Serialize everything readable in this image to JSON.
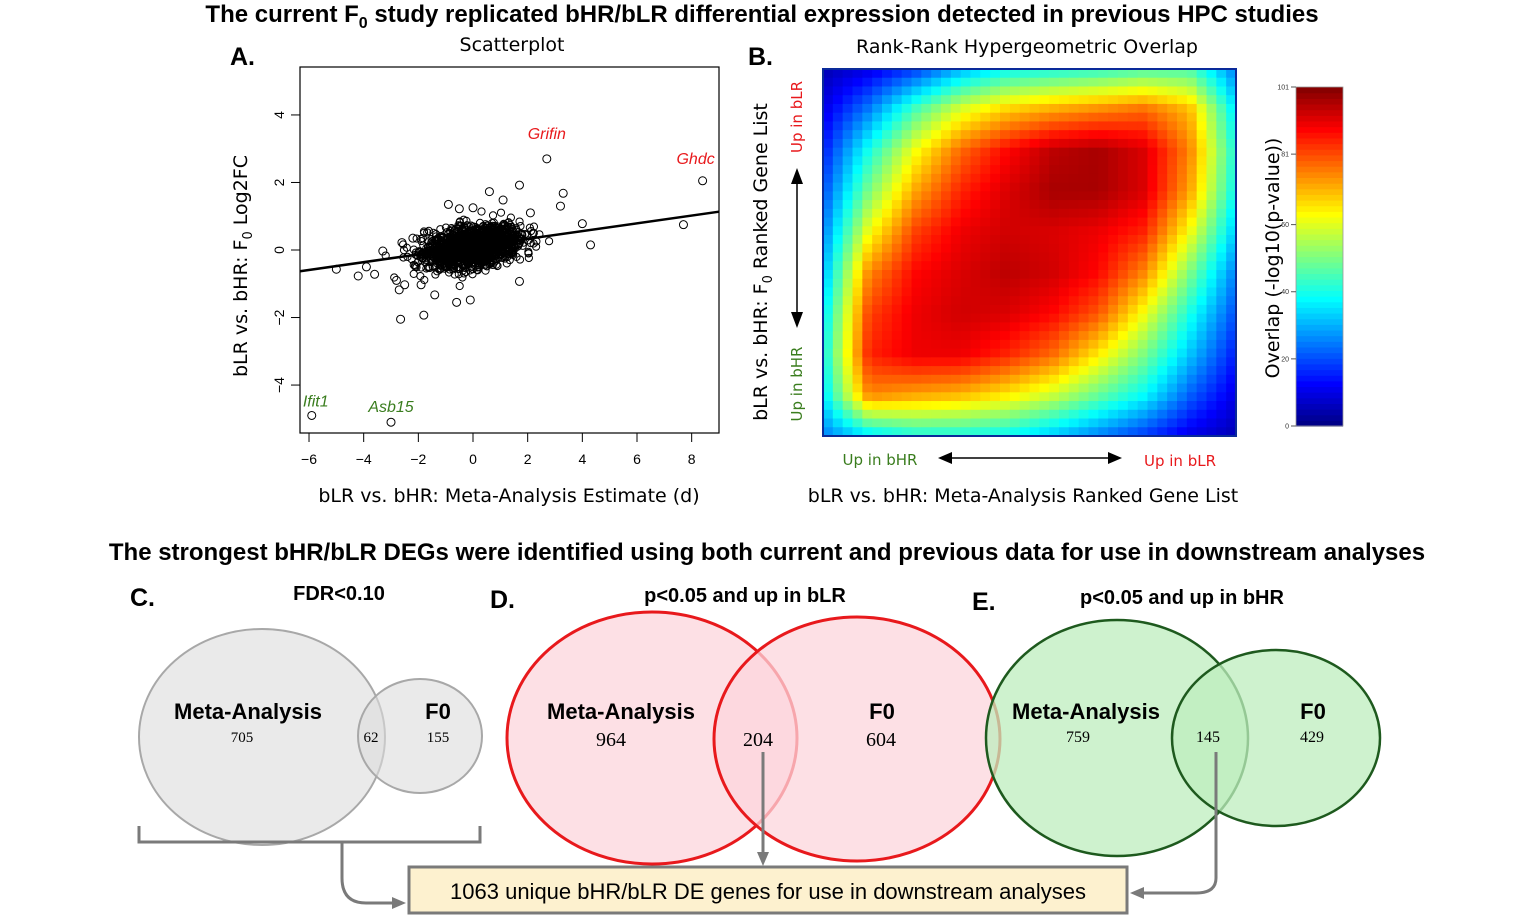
{
  "titles": {
    "top": [
      "The current F",
      "0",
      " study replicated bHR/bLR differential expression detected in previous HPC studies"
    ],
    "bottom": "The strongest bHR/bLR DEGs were identified using both current and previous data for use in downstream analyses"
  },
  "panels": {
    "a": {
      "label": "A.",
      "title": "Scatterplot"
    },
    "b": {
      "label": "B.",
      "title": "Rank-Rank Hypergeometric Overlap"
    },
    "c": {
      "label": "C.",
      "title": "FDR<0.10"
    },
    "d": {
      "label": "D.",
      "title": "p<0.05 and up in bLR"
    },
    "e": {
      "label": "E.",
      "title": "p<0.05 and up in bHR"
    }
  },
  "chart_data": [
    {
      "type": "scatter",
      "title": "Scatterplot",
      "xlabel": "bLR vs. bHR: Meta-Analysis Estimate (d)",
      "ylabel": [
        "bLR vs. bHR: F",
        "0",
        " Log2FC"
      ],
      "xlim": [
        -6.33,
        9.0
      ],
      "ylim": [
        -5.42,
        5.42
      ],
      "xticks": [
        -6,
        -4,
        -2,
        0,
        2,
        4,
        6,
        8
      ],
      "yticks": [
        -4,
        -2,
        0,
        2,
        4
      ],
      "fit_line": {
        "intercept": 0.1,
        "slope": 0.115
      },
      "dense_core": {
        "n": 1600,
        "x_sd": 0.85,
        "y_sd": 0.28
      },
      "points": [
        [
          2.7,
          2.7
        ],
        [
          8.4,
          2.05
        ],
        [
          -5.9,
          -4.9
        ],
        [
          -3.0,
          -5.1
        ],
        [
          7.7,
          0.75
        ],
        [
          4.3,
          0.15
        ],
        [
          1.7,
          1.92
        ],
        [
          3.3,
          1.68
        ],
        [
          0.6,
          1.73
        ],
        [
          3.2,
          1.3
        ],
        [
          1.1,
          1.48
        ],
        [
          -0.9,
          1.35
        ],
        [
          -0.5,
          1.22
        ],
        [
          0.0,
          1.25
        ],
        [
          2.1,
          1.1
        ],
        [
          4.0,
          0.78
        ],
        [
          -5.0,
          -0.57
        ],
        [
          -4.2,
          -0.77
        ],
        [
          -3.9,
          -0.5
        ],
        [
          -3.6,
          -0.72
        ],
        [
          -2.8,
          -0.9
        ],
        [
          -2.7,
          -1.18
        ],
        [
          -2.5,
          -1.03
        ],
        [
          -1.9,
          -1.03
        ],
        [
          -1.4,
          -1.33
        ],
        [
          -0.6,
          -1.55
        ],
        [
          -0.1,
          -1.48
        ],
        [
          1.7,
          -0.93
        ],
        [
          -2.65,
          -2.05
        ],
        [
          -1.8,
          -1.93
        ],
        [
          -3.3,
          -0.03
        ],
        [
          -2.6,
          0.22
        ],
        [
          -2.2,
          0.35
        ]
      ],
      "labels": [
        {
          "text": "Grifin",
          "x": 2.7,
          "y": 2.7,
          "color": "#e8191c"
        },
        {
          "text": "Ghdc",
          "x": 8.4,
          "y": 2.05,
          "color": "#e8191c"
        },
        {
          "text": "Ifit1",
          "x": -5.9,
          "y": -4.9,
          "color": "#3a7d1e"
        },
        {
          "text": "Asb15",
          "x": -3.0,
          "y": -5.1,
          "color": "#3a7d1e"
        }
      ]
    },
    {
      "type": "heatmap",
      "title": "Rank-Rank Hypergeometric Overlap",
      "xlabel": "bLR vs. bHR: Meta-Analysis Ranked Gene List",
      "ylabel": [
        "bLR vs. bHR: F",
        "0",
        " Ranked Gene List"
      ],
      "x_ends": [
        "Up in bHR",
        "Up in bLR"
      ],
      "y_ends": [
        "Up in bLR",
        "Up in bHR"
      ],
      "colorbar": {
        "label": "Overlap (-log10(p-value))",
        "range": [
          0,
          101
        ],
        "ticks": [
          0,
          20,
          40,
          60,
          81,
          101
        ]
      },
      "matrix": [
        [
          5,
          10,
          18,
          30,
          38,
          40,
          42,
          45,
          45,
          25
        ],
        [
          10,
          25,
          45,
          60,
          68,
          72,
          75,
          78,
          70,
          35
        ],
        [
          15,
          40,
          62,
          78,
          88,
          95,
          97,
          92,
          75,
          40
        ],
        [
          20,
          50,
          72,
          85,
          92,
          97,
          97,
          92,
          72,
          38
        ],
        [
          25,
          62,
          82,
          90,
          93,
          92,
          90,
          85,
          62,
          32
        ],
        [
          30,
          75,
          88,
          92,
          95,
          93,
          88,
          75,
          50,
          25
        ],
        [
          35,
          82,
          90,
          93,
          92,
          88,
          80,
          62,
          40,
          20
        ],
        [
          38,
          85,
          90,
          90,
          85,
          78,
          65,
          50,
          32,
          15
        ],
        [
          35,
          75,
          72,
          70,
          65,
          58,
          48,
          38,
          22,
          10
        ],
        [
          25,
          35,
          40,
          40,
          38,
          32,
          25,
          18,
          10,
          5
        ]
      ]
    },
    {
      "type": "venn",
      "title": "FDR<0.10",
      "sets": [
        "Meta-Analysis",
        "F0"
      ],
      "only_a": "705",
      "both": "62",
      "only_b": "155",
      "fill": "#e6e6e6",
      "stroke": "#a8a8a8"
    },
    {
      "type": "venn",
      "title": "p<0.05 and up in bLR",
      "sets": [
        "Meta-Analysis",
        "F0"
      ],
      "only_a": "964",
      "both": "204",
      "only_b": "604",
      "fill": "#fcd6dc",
      "stroke": "#e8191c"
    },
    {
      "type": "venn",
      "title": "p<0.05 and up in bHR",
      "sets": [
        "Meta-Analysis",
        "F0"
      ],
      "only_a": "759",
      "both": "145",
      "only_b": "429",
      "fill": "#bdeebd",
      "stroke": "#1e5a1e"
    }
  ],
  "summary_box": {
    "text": "1063 unique bHR/bLR DE genes for use in downstream analyses",
    "fill": "#fdf1cf"
  }
}
